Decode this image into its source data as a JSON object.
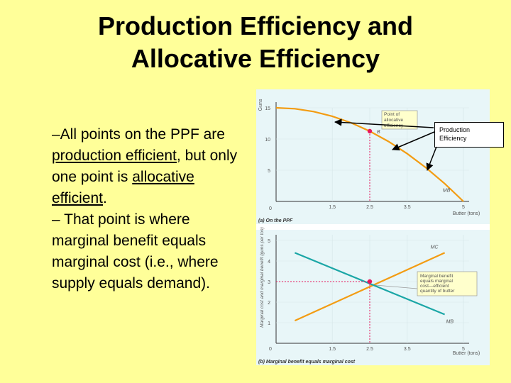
{
  "slide": {
    "title_line1": "Production Efficiency and",
    "title_line2": "Allocative Efficiency",
    "bullet1_pre": "–All points on the PPF are ",
    "bullet1_link1": "production efficient",
    "bullet1_mid": ", but only one point is ",
    "bullet1_link2": "allocative efficient",
    "bullet1_post": ".",
    "bullet2": "– That point is where marginal benefit equals marginal cost (i.e., where supply equals demand).",
    "callout_line1": "Production",
    "callout_line2": "Efficiency"
  },
  "colors": {
    "background": "#ffff99",
    "panel": "#e8f6f8",
    "ppf": "#f39c12",
    "mb": "#1aa6a6",
    "mc": "#f39c12",
    "point": "#e8175d"
  },
  "chart_data": [
    {
      "type": "line",
      "panel_label": "(a) On the PPF",
      "ylabel": "Guns",
      "xlabel": "Butter (tons)",
      "xlim": [
        0,
        5
      ],
      "ylim": [
        0,
        15
      ],
      "x_ticks": [
        "1.5",
        "2.5",
        "3.5",
        "5"
      ],
      "y_ticks": [
        "5",
        "10",
        "15"
      ],
      "origin_label": "0",
      "series": [
        {
          "name": "MB",
          "x": [
            0,
            0.5,
            1,
            1.5,
            2,
            2.5,
            3,
            3.5,
            4,
            4.5,
            5
          ],
          "y": [
            15,
            14.85,
            14.4,
            13.65,
            12.6,
            11.25,
            9.6,
            7.65,
            5.4,
            2.85,
            0
          ]
        }
      ],
      "points": [
        {
          "label": "B",
          "x": 2.5,
          "y": 11.25
        }
      ],
      "annotation": {
        "line1": "Point of",
        "line2": "allocative",
        "line3": "efficiency"
      }
    },
    {
      "type": "line",
      "panel_label": "(b) Marginal benefit equals marginal cost",
      "ylabel": "Marginal cost and marginal benefit (guns per ton)",
      "xlabel": "Butter (tons)",
      "xlim": [
        0,
        5
      ],
      "ylim": [
        0,
        5
      ],
      "x_ticks": [
        "1.5",
        "2.5",
        "3.5",
        "5"
      ],
      "y_ticks": [
        "1",
        "2",
        "3",
        "4",
        "5"
      ],
      "origin_label": "0",
      "series": [
        {
          "name": "MC",
          "x": [
            0.5,
            4.5
          ],
          "y": [
            1.1,
            4.4
          ]
        },
        {
          "name": "MB",
          "x": [
            0.5,
            4.5
          ],
          "y": [
            4.4,
            1.4
          ]
        }
      ],
      "points": [
        {
          "label": "",
          "x": 2.5,
          "y": 3
        }
      ],
      "annotation": {
        "line1": "Marginal benefit",
        "line2": "equals marginal",
        "line3": "cost—efficient",
        "line4": "quantity of butter"
      }
    }
  ]
}
